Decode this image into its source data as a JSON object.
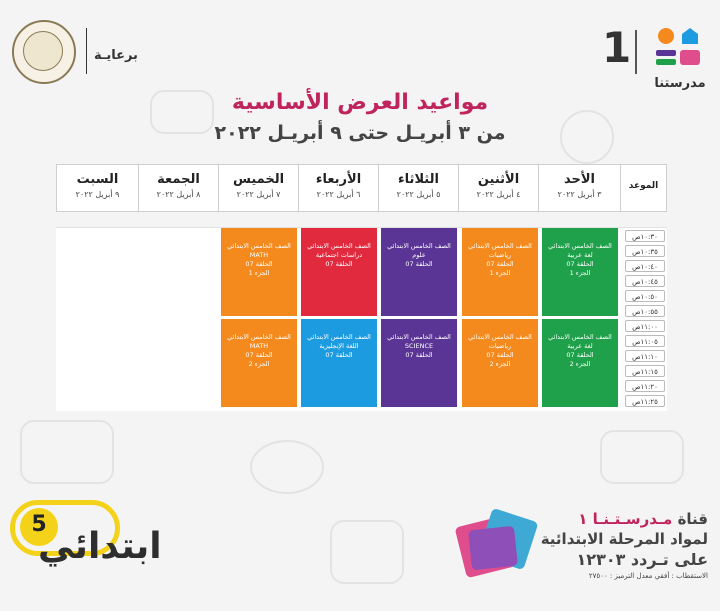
{
  "header": {
    "patron": "برعايـة",
    "brand_one": "1",
    "brand_name": "مدرستنا",
    "colors": {
      "title": "#c0245c",
      "orange": "#f48a1e",
      "blue": "#1d9be0",
      "pink": "#e04d8c",
      "purple": "#5b3596"
    }
  },
  "title": "مواعيد العرض الأساسية",
  "subtitle": "من ٣ أبريـل حتى ٩ أبريـل ٢٠٢٢",
  "table": {
    "time_header": "الموعد",
    "days": [
      {
        "day": "الأحد",
        "date": "٣ أبريل ٢٠٢٢"
      },
      {
        "day": "الأثنين",
        "date": "٤ أبريل ٢٠٢٢"
      },
      {
        "day": "الثلاثاء",
        "date": "٥ أبريل ٢٠٢٢"
      },
      {
        "day": "الأربعاء",
        "date": "٦ أبريل ٢٠٢٢"
      },
      {
        "day": "الخميس",
        "date": "٧ أبريل ٢٠٢٢"
      },
      {
        "day": "الجمعة",
        "date": "٨ أبريل ٢٠٢٢"
      },
      {
        "day": "السبت",
        "date": "٩ أبريل ٢٠٢٢"
      }
    ],
    "slots": [
      "١٠:٣٠ص",
      "١٠:٣٥ص",
      "١٠:٤٠ص",
      "١٠:٤٥ص",
      "١٠:٥٠ص",
      "١٠:٥٥ص",
      "١١:٠٠ص",
      "١١:٠٥ص",
      "١١:١٠ص",
      "١١:١٥ص",
      "١١:٢٠ص",
      "١١:٢٥ص"
    ],
    "sessions": [
      {
        "day": "الأحد",
        "grade": "الصف الخامس الابتدائي",
        "subject": "لغة عربية",
        "episode": "الحلقة 07",
        "part": "الجزء 1",
        "color": "green"
      },
      {
        "day": "الأحد",
        "grade": "الصف الخامس الابتدائي",
        "subject": "لغة عربية",
        "episode": "الحلقة 07",
        "part": "الجزء 2",
        "color": "green"
      },
      {
        "day": "الأثنين",
        "grade": "الصف الخامس الابتدائي",
        "subject": "رياضيات",
        "episode": "الحلقة 07",
        "part": "الجزء 1",
        "color": "orange"
      },
      {
        "day": "الأثنين",
        "grade": "الصف الخامس الابتدائي",
        "subject": "رياضيات",
        "episode": "الحلقة 07",
        "part": "الجزء 2",
        "color": "orange"
      },
      {
        "day": "الثلاثاء",
        "grade": "الصف الخامس الابتدائي",
        "subject": "علوم",
        "episode": "الحلقة 07",
        "part": "",
        "color": "purple"
      },
      {
        "day": "الثلاثاء",
        "grade": "الصف الخامس الابتدائي",
        "subject": "SCIENCE",
        "episode": "الحلقة 07",
        "part": "",
        "color": "purple"
      },
      {
        "day": "الأربعاء",
        "grade": "الصف الخامس الابتدائي",
        "subject": "دراسات اجتماعية",
        "episode": "الحلقة 07",
        "part": "",
        "color": "red"
      },
      {
        "day": "الأربعاء",
        "grade": "الصف الخامس الابتدائي",
        "subject": "اللغة الإنجليزية",
        "episode": "الحلقة 07",
        "part": "",
        "color": "blue"
      },
      {
        "day": "الخميس",
        "grade": "الصف الخامس الابتدائي",
        "subject": "MATH",
        "episode": "الحلقة 07",
        "part": "الجزء 1",
        "color": "orange"
      },
      {
        "day": "الخميس",
        "grade": "الصف الخامس الابتدائي",
        "subject": "MATH",
        "episode": "الحلقة 07",
        "part": "الجزء 2",
        "color": "orange"
      }
    ]
  },
  "badge": {
    "text": "ابتدائي",
    "number": "5"
  },
  "footer": {
    "channel_prefix": "قناة ",
    "channel_name": "مـدرسـتـنـا ١",
    "line2": "لمواد المرحلة الابتدائية",
    "line3": "على تـردد ١٢٣٠٣",
    "line4": "الاستقطاب : أفقي معدل الترميز : ٢٧٥٠٠"
  }
}
